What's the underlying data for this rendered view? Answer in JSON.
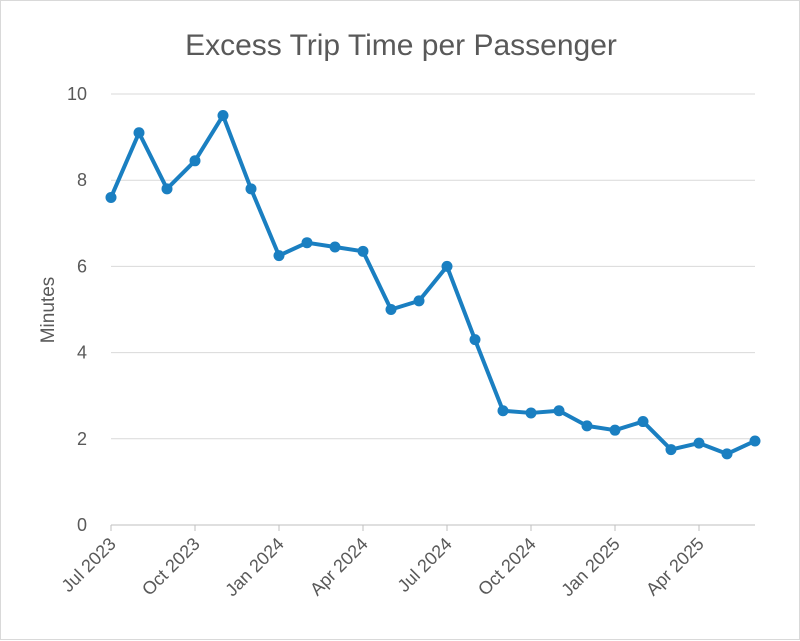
{
  "chart_data": {
    "type": "line",
    "title": "Excess Trip Time per Passenger",
    "xlabel": "",
    "ylabel": "Minutes",
    "ylim": [
      0,
      10
    ],
    "y_ticks": [
      0,
      2,
      4,
      6,
      8,
      10
    ],
    "x_tick_labels": [
      "Jul 2023",
      "Oct 2023",
      "Jan 2024",
      "Apr 2024",
      "Jul 2024",
      "Oct 2024",
      "Jan 2025",
      "Apr 2025"
    ],
    "grid": "horizontal",
    "x": [
      "Jul 2023",
      "Aug 2023",
      "Sep 2023",
      "Oct 2023",
      "Nov 2023",
      "Dec 2023",
      "Jan 2024",
      "Feb 2024",
      "Mar 2024",
      "Apr 2024",
      "May 2024",
      "Jun 2024",
      "Jul 2024",
      "Aug 2024",
      "Sep 2024",
      "Oct 2024",
      "Nov 2024",
      "Dec 2024",
      "Jan 2025",
      "Feb 2025",
      "Mar 2025",
      "Apr 2025",
      "May 2025",
      "Jun 2025"
    ],
    "series": [
      {
        "color": "#1a7fc1",
        "values": [
          7.6,
          9.1,
          7.8,
          8.45,
          9.5,
          7.8,
          6.25,
          6.55,
          6.45,
          6.35,
          5.0,
          5.2,
          6.0,
          4.3,
          2.65,
          2.6,
          2.65,
          2.3,
          2.2,
          2.4,
          1.75,
          1.9,
          1.65,
          1.95
        ]
      }
    ]
  },
  "colors": {
    "line": "#1a7fc1",
    "grid": "#d9d9d9",
    "text": "#595959"
  }
}
